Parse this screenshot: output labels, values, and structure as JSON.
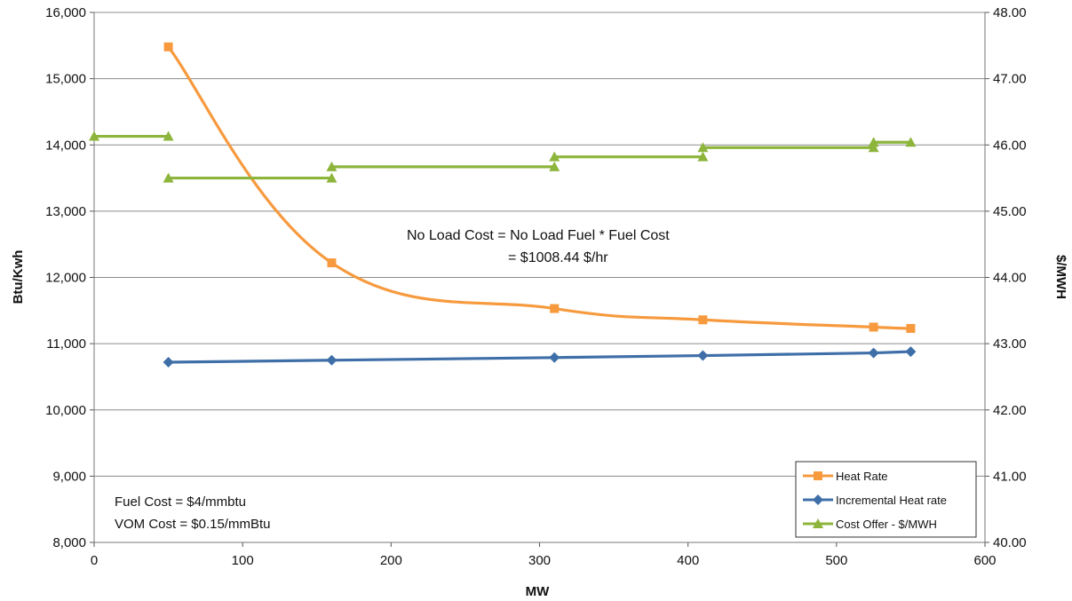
{
  "chart_data": {
    "type": "line",
    "title": "",
    "xlabel": "MW",
    "ylabel_left": "Btu/Kwh",
    "ylabel_right": "$/MWH",
    "xlim": [
      0,
      600
    ],
    "ylim_left": [
      8000,
      16000
    ],
    "ylim_right": [
      40.0,
      48.0
    ],
    "x_ticks": [
      "0",
      "100",
      "200",
      "300",
      "400",
      "500",
      "600"
    ],
    "y_left_ticks": [
      "8,000",
      "9,000",
      "10,000",
      "11,000",
      "12,000",
      "13,000",
      "14,000",
      "15,000",
      "16,000"
    ],
    "y_right_ticks": [
      "40.00",
      "41.00",
      "42.00",
      "43.00",
      "44.00",
      "45.00",
      "46.00",
      "47.00",
      "48.00"
    ],
    "grid": "horizontal",
    "legend_position": "bottom-right",
    "series": [
      {
        "name": "Heat Rate",
        "axis": "left",
        "color": "#F79A3E",
        "marker": "square",
        "smooth": true,
        "x": [
          50,
          160,
          310,
          410,
          525,
          550
        ],
        "y": [
          15480,
          12220,
          11530,
          11360,
          11250,
          11230
        ]
      },
      {
        "name": "Incremental Heat rate",
        "axis": "left",
        "color": "#3F6FA8",
        "marker": "diamond",
        "smooth": false,
        "x": [
          50,
          160,
          310,
          410,
          525,
          550
        ],
        "y": [
          10720,
          10750,
          10790,
          10820,
          10860,
          10880
        ]
      },
      {
        "name": "Cost Offer - $/MWH",
        "axis": "right",
        "color": "#8DB53C",
        "marker": "triangle",
        "smooth": false,
        "step": true,
        "x": [
          0,
          50,
          50,
          160,
          160,
          310,
          310,
          410,
          410,
          525,
          525,
          550
        ],
        "y": [
          46.13,
          46.13,
          45.5,
          45.5,
          45.67,
          45.67,
          45.82,
          45.82,
          45.96,
          45.96,
          46.04,
          46.04
        ]
      }
    ],
    "annotations": {
      "no_load_line1": "No Load Cost = No Load Fuel * Fuel Cost",
      "no_load_line2": "= $1008.44 $/hr",
      "fuel_cost": "Fuel Cost = $4/mmbtu",
      "vom_cost": "VOM Cost = $0.15/mmBtu"
    }
  }
}
